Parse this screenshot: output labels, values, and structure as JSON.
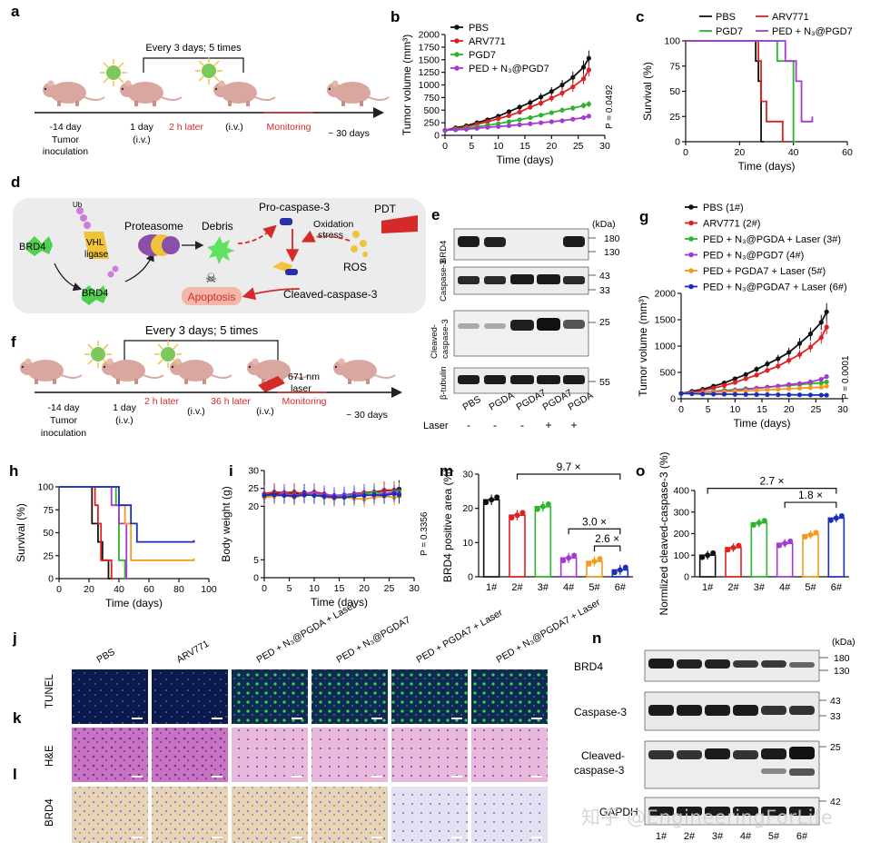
{
  "panels": {
    "a": "a",
    "b": "b",
    "c": "c",
    "d": "d",
    "e": "e",
    "f": "f",
    "g": "g",
    "h": "h",
    "i": "i",
    "j": "j",
    "k": "k",
    "l": "l",
    "m": "m",
    "n": "n",
    "o": "o"
  },
  "panel_a": {
    "bracket": "Every 3 days; 5 times",
    "t1": "-14 day",
    "t1b": "Tumor",
    "t1c": "inoculation",
    "t2": "1 day",
    "t2b": "(i.v.)",
    "t3": "2 h later",
    "t4": "(i.v.)",
    "t5": "Monitoring",
    "t6": "~ 30 days"
  },
  "panel_f": {
    "bracket": "Every 3 days; 5 times",
    "t1": "-14 day",
    "t1b": "Tumor",
    "t1c": "inoculation",
    "t2": "1 day",
    "t2b": "(i.v.)",
    "t3": "2 h later",
    "t4": "(i.v.)",
    "t5": "36 h later",
    "t6": "(i.v.)",
    "laser1": "671 nm",
    "laser2": "laser",
    "t7": "Monitoring",
    "t8": "~ 30 days"
  },
  "panel_d": {
    "brd4": "BRD4",
    "ub": "Ub",
    "vhl1": "VHL",
    "vhl2": "ligase",
    "proteasome": "Proteasome",
    "debris": "Debris",
    "procasp": "Pro-caspase-3",
    "oxid1": "Oxidation",
    "oxid2": "stress",
    "ros": "ROS",
    "pdt": "PDT",
    "apoptosis": "Apoptosis",
    "cleaved": "Cleaved-caspase-3"
  },
  "panel_e": {
    "kda": "(kDa)",
    "lbl_brd4": "BRD4",
    "lbl_casp": "Caspase-3",
    "lbl_cleaved1": "Cleaved-",
    "lbl_cleaved2": "caspase-3",
    "lbl_tub": "β-tubulin",
    "m180": "180",
    "m130": "130",
    "m43": "43",
    "m33": "33",
    "m25": "25",
    "m55": "55",
    "lanes": [
      "PBS",
      "PGDA",
      "PGDA7",
      "PGDA7",
      "PGDA"
    ],
    "laser_label": "Laser",
    "laser": [
      "-",
      "-",
      "-",
      "+",
      "+"
    ]
  },
  "panel_j": {
    "groups": [
      "PBS",
      "ARV771",
      "PED + N₃@PGDA + Laser",
      "PED + N₃@PGDA7",
      "PED + PGDA7 + Laser",
      "PED + N₃@PGDA7 + Laser"
    ],
    "row_tunel": "TUNEL",
    "row_he": "H&E",
    "row_brd4": "BRD4"
  },
  "panel_n": {
    "kda": "(kDa)",
    "rows": [
      "BRD4",
      "Caspase-3",
      "Cleaved-",
      "caspase-3",
      "GAPDH"
    ],
    "m180": "180",
    "m130": "130",
    "m43": "43",
    "m33": "33",
    "m25": "25",
    "m42": "42",
    "lanes": [
      "1#",
      "2#",
      "3#",
      "4#",
      "5#",
      "6#"
    ]
  },
  "watermark": "知乎 @EngineeringForLife",
  "colors": {
    "black": "#111111",
    "red": "#e02020",
    "green": "#2cb52c",
    "purple": "#a43ad6",
    "orange": "#f39a1e",
    "blue": "#1a2fb8"
  },
  "chart_data": [
    {
      "id": "b",
      "type": "line",
      "title": "",
      "xlabel": "Time (days)",
      "ylabel": "Tumor volume (mm³)",
      "xlim": [
        0,
        30
      ],
      "ylim": [
        0,
        2000
      ],
      "xticks": [
        0,
        5,
        10,
        15,
        20,
        25,
        30
      ],
      "yticks": [
        0,
        250,
        500,
        750,
        1000,
        1250,
        1500,
        1750,
        2000
      ],
      "x": [
        0,
        2,
        4,
        6,
        8,
        10,
        12,
        14,
        16,
        18,
        20,
        22,
        24,
        26,
        27
      ],
      "series": [
        {
          "name": "PBS",
          "color": "black",
          "values": [
            100,
            150,
            190,
            250,
            310,
            380,
            470,
            560,
            650,
            760,
            870,
            1000,
            1150,
            1350,
            1530
          ]
        },
        {
          "name": "ARV771",
          "color": "red",
          "values": [
            100,
            130,
            170,
            220,
            270,
            330,
            390,
            460,
            560,
            640,
            740,
            840,
            960,
            1120,
            1300
          ]
        },
        {
          "name": "PGD7",
          "color": "green",
          "values": [
            100,
            120,
            140,
            170,
            200,
            230,
            270,
            310,
            350,
            400,
            450,
            500,
            540,
            590,
            620
          ]
        },
        {
          "name": "PED + N₃@PGD7",
          "color": "purple",
          "values": [
            100,
            110,
            120,
            140,
            160,
            175,
            190,
            210,
            230,
            250,
            270,
            290,
            320,
            350,
            380
          ]
        }
      ],
      "annotation": "P = 0.0492"
    },
    {
      "id": "c",
      "type": "line",
      "title": "",
      "xlabel": "Time (days)",
      "ylabel": "Survival (%)",
      "xlim": [
        0,
        60
      ],
      "ylim": [
        0,
        100
      ],
      "xticks": [
        0,
        20,
        40,
        60
      ],
      "yticks": [
        0,
        25,
        50,
        75,
        100
      ],
      "series": [
        {
          "name": "PBS",
          "color": "black",
          "steps": [
            [
              0,
              100
            ],
            [
              26,
              100
            ],
            [
              26,
              80
            ],
            [
              27,
              80
            ],
            [
              27,
              60
            ],
            [
              28,
              60
            ],
            [
              28,
              0
            ],
            [
              29,
              0
            ]
          ]
        },
        {
          "name": "ARV771",
          "color": "red",
          "steps": [
            [
              0,
              100
            ],
            [
              27,
              100
            ],
            [
              27,
              80
            ],
            [
              28,
              80
            ],
            [
              28,
              40
            ],
            [
              30,
              40
            ],
            [
              30,
              20
            ],
            [
              36,
              20
            ],
            [
              36,
              0
            ],
            [
              38,
              0
            ]
          ]
        },
        {
          "name": "PGD7",
          "color": "green",
          "steps": [
            [
              0,
              100
            ],
            [
              34,
              100
            ],
            [
              34,
              80
            ],
            [
              40,
              80
            ],
            [
              40,
              0
            ],
            [
              41,
              0
            ]
          ]
        },
        {
          "name": "PED + N₃@PGD7",
          "color": "purple",
          "steps": [
            [
              0,
              100
            ],
            [
              37,
              100
            ],
            [
              37,
              80
            ],
            [
              41,
              80
            ],
            [
              41,
              60
            ],
            [
              43,
              60
            ],
            [
              43,
              20
            ],
            [
              47,
              20
            ],
            [
              47,
              25
            ]
          ]
        }
      ]
    },
    {
      "id": "g",
      "type": "line",
      "title": "",
      "xlabel": "Time (days)",
      "ylabel": "Tumor volume (mm³)",
      "xlim": [
        0,
        30
      ],
      "ylim": [
        0,
        2000
      ],
      "xticks": [
        0,
        5,
        10,
        15,
        20,
        25,
        30
      ],
      "yticks": [
        0,
        500,
        1000,
        1500,
        2000
      ],
      "x": [
        0,
        2,
        4,
        6,
        8,
        10,
        12,
        14,
        16,
        18,
        20,
        22,
        24,
        26,
        27
      ],
      "series": [
        {
          "name": "PBS (1#)",
          "color": "black",
          "values": [
            100,
            140,
            180,
            240,
            300,
            380,
            460,
            560,
            660,
            760,
            880,
            1050,
            1230,
            1450,
            1650
          ]
        },
        {
          "name": "ARV771 (2#)",
          "color": "red",
          "values": [
            100,
            120,
            160,
            200,
            250,
            310,
            380,
            450,
            540,
            620,
            730,
            840,
            980,
            1160,
            1360
          ]
        },
        {
          "name": "PED + N₃@PGDA + Laser (3#)",
          "color": "green",
          "values": [
            100,
            110,
            120,
            140,
            160,
            170,
            190,
            200,
            220,
            240,
            250,
            270,
            290,
            300,
            320
          ]
        },
        {
          "name": "PED + N₃@PGD7 (4#)",
          "color": "purple",
          "values": [
            100,
            110,
            120,
            130,
            150,
            160,
            180,
            200,
            220,
            240,
            270,
            290,
            320,
            370,
            420
          ]
        },
        {
          "name": "PED + PGDA7 + Laser (5#)",
          "color": "orange",
          "values": [
            100,
            105,
            110,
            120,
            130,
            140,
            150,
            160,
            170,
            180,
            190,
            200,
            210,
            220,
            240
          ]
        },
        {
          "name": "PED + N₃@PGDA7 + Laser (6#)",
          "color": "blue",
          "values": [
            100,
            95,
            90,
            88,
            86,
            84,
            82,
            80,
            78,
            76,
            75,
            74,
            72,
            70,
            68
          ]
        }
      ],
      "annotation": "P = 0.0001"
    },
    {
      "id": "h",
      "type": "line",
      "title": "",
      "xlabel": "Time (days)",
      "ylabel": "Survival (%)",
      "xlim": [
        0,
        100
      ],
      "ylim": [
        0,
        100
      ],
      "xticks": [
        0,
        20,
        40,
        60,
        80,
        100
      ],
      "yticks": [
        0,
        25,
        50,
        75,
        100
      ],
      "series": [
        {
          "name": "1#",
          "color": "black",
          "steps": [
            [
              0,
              100
            ],
            [
              22,
              100
            ],
            [
              22,
              60
            ],
            [
              26,
              60
            ],
            [
              26,
              40
            ],
            [
              29,
              40
            ],
            [
              29,
              20
            ],
            [
              33,
              20
            ],
            [
              33,
              0
            ],
            [
              35,
              0
            ]
          ]
        },
        {
          "name": "2#",
          "color": "red",
          "steps": [
            [
              0,
              100
            ],
            [
              24,
              100
            ],
            [
              24,
              80
            ],
            [
              26,
              80
            ],
            [
              26,
              60
            ],
            [
              28,
              60
            ],
            [
              28,
              20
            ],
            [
              35,
              20
            ],
            [
              35,
              0
            ],
            [
              37,
              0
            ]
          ]
        },
        {
          "name": "3#",
          "color": "green",
          "steps": [
            [
              0,
              100
            ],
            [
              38,
              100
            ],
            [
              38,
              80
            ],
            [
              40,
              80
            ],
            [
              40,
              20
            ],
            [
              44,
              20
            ],
            [
              44,
              0
            ],
            [
              45,
              0
            ]
          ]
        },
        {
          "name": "4#",
          "color": "purple",
          "steps": [
            [
              0,
              100
            ],
            [
              35,
              100
            ],
            [
              35,
              80
            ],
            [
              40,
              80
            ],
            [
              40,
              60
            ],
            [
              45,
              60
            ],
            [
              45,
              0
            ],
            [
              47,
              0
            ]
          ]
        },
        {
          "name": "5#",
          "color": "orange",
          "steps": [
            [
              0,
              100
            ],
            [
              40,
              100
            ],
            [
              40,
              80
            ],
            [
              44,
              80
            ],
            [
              44,
              60
            ],
            [
              48,
              60
            ],
            [
              48,
              20
            ],
            [
              90,
              20
            ],
            [
              90,
              22
            ]
          ]
        },
        {
          "name": "6#",
          "color": "blue",
          "steps": [
            [
              0,
              100
            ],
            [
              40,
              100
            ],
            [
              40,
              80
            ],
            [
              48,
              80
            ],
            [
              48,
              60
            ],
            [
              52,
              60
            ],
            [
              52,
              40
            ],
            [
              90,
              40
            ],
            [
              90,
              42
            ]
          ]
        }
      ]
    },
    {
      "id": "i",
      "type": "line",
      "title": "",
      "xlabel": "Time (days)",
      "ylabel": "Body weight (g)",
      "xlim": [
        0,
        30
      ],
      "ylim": [
        0,
        30
      ],
      "xticks": [
        0,
        5,
        10,
        15,
        20,
        25,
        30
      ],
      "yticks": [
        0,
        5,
        20,
        25,
        30
      ],
      "x": [
        0,
        2,
        4,
        6,
        8,
        10,
        12,
        14,
        16,
        18,
        20,
        22,
        24,
        26,
        27
      ],
      "series": [
        {
          "name": "1#",
          "color": "black",
          "values": [
            23,
            23.5,
            23.8,
            23.5,
            23.8,
            23.5,
            23.2,
            23,
            23,
            23.5,
            23.8,
            24,
            24.3,
            24.5,
            24.8
          ]
        },
        {
          "name": "2#",
          "color": "red",
          "values": [
            23.5,
            24,
            23.8,
            24,
            23.5,
            24,
            23.5,
            22.8,
            23,
            23.5,
            23.8,
            24,
            24.5,
            24.5,
            24.2
          ]
        },
        {
          "name": "3#",
          "color": "green",
          "values": [
            22.8,
            23,
            23.5,
            23.2,
            23,
            23.5,
            23,
            22.5,
            23,
            23.2,
            23.5,
            23.8,
            23.5,
            24,
            24.2
          ]
        },
        {
          "name": "4#",
          "color": "purple",
          "values": [
            23,
            23.2,
            23.5,
            23,
            23.5,
            23.8,
            23.2,
            23,
            23.2,
            23.5,
            23.2,
            23,
            23.5,
            23.8,
            23.5
          ]
        },
        {
          "name": "5#",
          "color": "orange",
          "values": [
            22.5,
            22.8,
            23,
            22.5,
            23,
            23.2,
            22.5,
            22.2,
            22.5,
            22.2,
            22,
            22.5,
            22.8,
            22.5,
            22.8
          ]
        },
        {
          "name": "6#",
          "color": "blue",
          "values": [
            23,
            23.2,
            23,
            22.8,
            23.2,
            23,
            22.8,
            22.5,
            22.5,
            22.8,
            23,
            23.2,
            23,
            23.5,
            23.2
          ]
        }
      ],
      "annotation": "P = 0.3356"
    },
    {
      "id": "m",
      "type": "bar",
      "title": "",
      "xlabel": "",
      "ylabel": "BRD4 positive area (%)",
      "ylim": [
        0,
        30
      ],
      "yticks": [
        0,
        10,
        20,
        30
      ],
      "categories": [
        "1#",
        "2#",
        "3#",
        "4#",
        "5#",
        "6#"
      ],
      "values": [
        22.5,
        18,
        20.5,
        5.5,
        4.5,
        2
      ],
      "colors": [
        "black",
        "red",
        "green",
        "purple",
        "orange",
        "blue"
      ],
      "annotations": [
        "9.7 ×",
        "3.0 ×",
        "2.6 ×"
      ]
    },
    {
      "id": "o",
      "type": "bar",
      "title": "",
      "xlabel": "",
      "ylabel": "Normlized cleaved-caspase-3 (%)",
      "ylim": [
        0,
        400
      ],
      "yticks": [
        0,
        100,
        200,
        300,
        400
      ],
      "categories": [
        "1#",
        "2#",
        "3#",
        "4#",
        "5#",
        "6#"
      ],
      "values": [
        100,
        135,
        250,
        155,
        195,
        272
      ],
      "colors": [
        "black",
        "red",
        "green",
        "purple",
        "orange",
        "blue"
      ],
      "annotations": [
        "2.7 ×",
        "1.8 ×"
      ]
    }
  ]
}
